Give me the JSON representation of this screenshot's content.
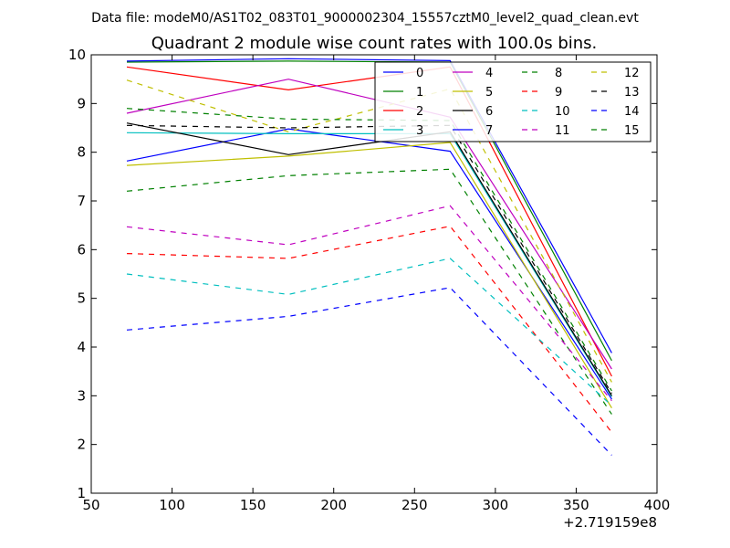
{
  "suptitle": "Data file: modeM0/AS1T02_083T01_9000002304_15557cztM0_level2_quad_clean.evt",
  "chart_data": {
    "type": "line",
    "title": "Quadrant 2 module wise count rates with 100.0s bins.",
    "xlabel": "",
    "ylabel": "",
    "x_offset_label": "+2.719159e8",
    "xlim": [
      50,
      400
    ],
    "ylim": [
      1,
      10
    ],
    "xticks": [
      50,
      100,
      150,
      200,
      250,
      300,
      350,
      400
    ],
    "yticks": [
      1,
      2,
      3,
      4,
      5,
      6,
      7,
      8,
      9,
      10
    ],
    "x": [
      72,
      172,
      272,
      372
    ],
    "legend_location": "top-right",
    "legend_columns": 4,
    "series": [
      {
        "name": "0",
        "color": "#0000ff",
        "dash": "solid",
        "values": [
          7.82,
          8.48,
          8.02,
          2.93
        ]
      },
      {
        "name": "1",
        "color": "#008000",
        "dash": "solid",
        "values": [
          9.85,
          9.87,
          9.85,
          3.72
        ]
      },
      {
        "name": "2",
        "color": "#ff0000",
        "dash": "solid",
        "values": [
          9.75,
          9.28,
          9.75,
          3.4
        ]
      },
      {
        "name": "3",
        "color": "#00bfbf",
        "dash": "solid",
        "values": [
          8.4,
          8.38,
          8.38,
          2.98
        ]
      },
      {
        "name": "4",
        "color": "#bf00bf",
        "dash": "solid",
        "values": [
          8.8,
          9.5,
          8.72,
          3.55
        ]
      },
      {
        "name": "5",
        "color": "#bfbf00",
        "dash": "solid",
        "values": [
          7.73,
          7.92,
          8.2,
          2.75
        ]
      },
      {
        "name": "6",
        "color": "#000000",
        "dash": "solid",
        "values": [
          8.6,
          7.95,
          8.42,
          3.0
        ]
      },
      {
        "name": "7",
        "color": "#0000ff",
        "dash": "solid",
        "values": [
          9.87,
          9.92,
          9.88,
          3.88
        ]
      },
      {
        "name": "8",
        "color": "#008000",
        "dash": "dashed",
        "values": [
          7.2,
          7.52,
          7.65,
          2.62
        ]
      },
      {
        "name": "9",
        "color": "#ff0000",
        "dash": "dashed",
        "values": [
          5.92,
          5.82,
          6.48,
          2.25
        ]
      },
      {
        "name": "10",
        "color": "#00bfbf",
        "dash": "dashed",
        "values": [
          5.5,
          5.08,
          5.82,
          2.8
        ]
      },
      {
        "name": "11",
        "color": "#bf00bf",
        "dash": "dashed",
        "values": [
          6.47,
          6.1,
          6.9,
          2.9
        ]
      },
      {
        "name": "12",
        "color": "#bfbf00",
        "dash": "dashed",
        "values": [
          9.48,
          8.42,
          9.3,
          3.28
        ]
      },
      {
        "name": "13",
        "color": "#000000",
        "dash": "dashed",
        "values": [
          8.55,
          8.5,
          8.55,
          3.05
        ]
      },
      {
        "name": "14",
        "color": "#0000ff",
        "dash": "dashed",
        "values": [
          4.35,
          4.63,
          5.22,
          1.78
        ]
      },
      {
        "name": "15",
        "color": "#008000",
        "dash": "dashed",
        "values": [
          8.9,
          8.68,
          8.65,
          3.1
        ]
      }
    ]
  }
}
